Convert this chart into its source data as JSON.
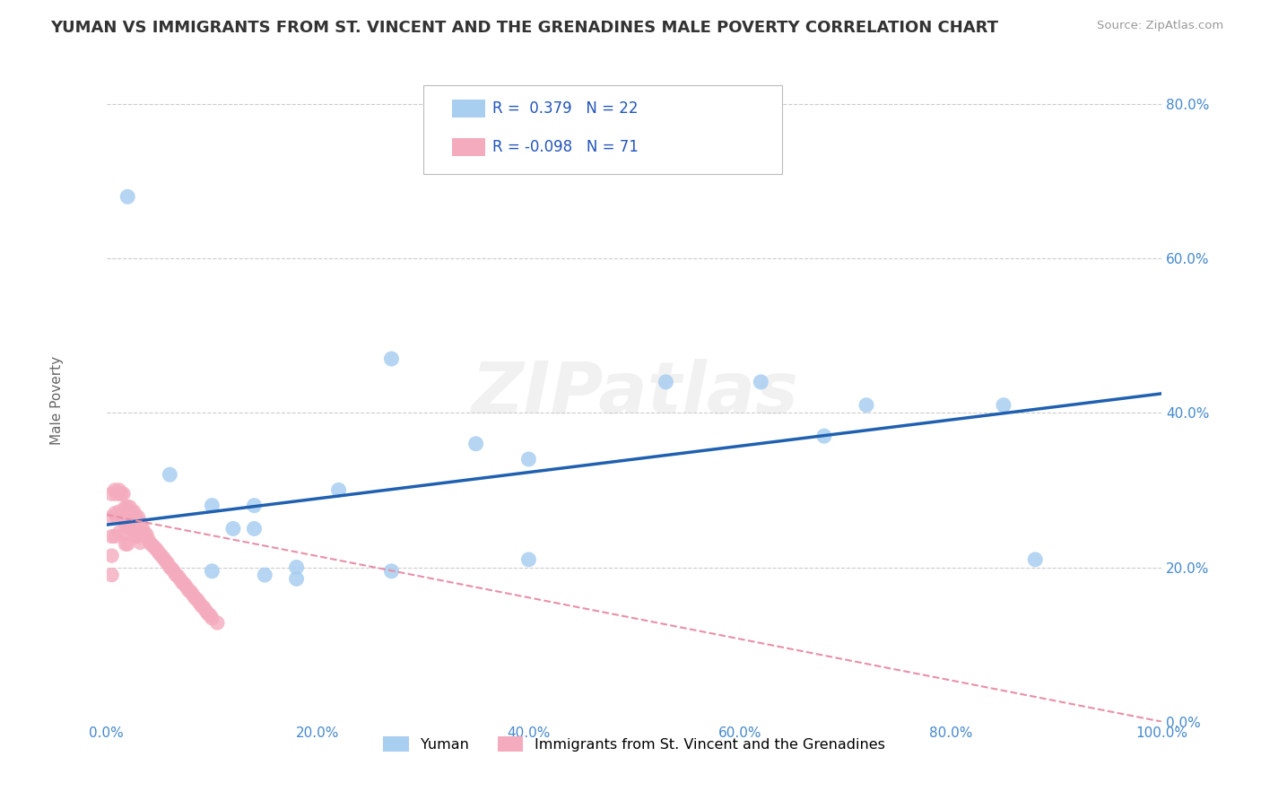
{
  "title": "YUMAN VS IMMIGRANTS FROM ST. VINCENT AND THE GRENADINES MALE POVERTY CORRELATION CHART",
  "source": "Source: ZipAtlas.com",
  "ylabel": "Male Poverty",
  "xlim": [
    0,
    1.0
  ],
  "ylim": [
    0,
    0.85
  ],
  "yticks": [
    0.0,
    0.2,
    0.4,
    0.6,
    0.8
  ],
  "ytick_labels": [
    "0.0%",
    "20.0%",
    "40.0%",
    "60.0%",
    "80.0%"
  ],
  "xticks": [
    0.0,
    0.2,
    0.4,
    0.6,
    0.8,
    1.0
  ],
  "xtick_labels": [
    "0.0%",
    "20.0%",
    "40.0%",
    "60.0%",
    "80.0%",
    "100.0%"
  ],
  "blue_R": 0.379,
  "blue_N": 22,
  "pink_R": -0.098,
  "pink_N": 71,
  "blue_color": "#A8CEF0",
  "pink_color": "#F4ABBE",
  "line_blue_color": "#2060B0",
  "line_pink_color": "#E890A8",
  "watermark": "ZIPatlas",
  "blue_scatter_x": [
    0.02,
    0.06,
    0.1,
    0.12,
    0.14,
    0.14,
    0.18,
    0.18,
    0.1,
    0.22,
    0.27,
    0.35,
    0.4,
    0.53,
    0.62,
    0.68,
    0.72,
    0.85,
    0.88,
    0.15,
    0.27,
    0.4
  ],
  "blue_scatter_y": [
    0.68,
    0.32,
    0.28,
    0.25,
    0.28,
    0.25,
    0.2,
    0.185,
    0.195,
    0.3,
    0.47,
    0.36,
    0.34,
    0.44,
    0.44,
    0.37,
    0.41,
    0.41,
    0.21,
    0.19,
    0.195,
    0.21
  ],
  "pink_scatter_x": [
    0.005,
    0.005,
    0.005,
    0.005,
    0.005,
    0.008,
    0.008,
    0.008,
    0.01,
    0.01,
    0.012,
    0.012,
    0.012,
    0.014,
    0.014,
    0.016,
    0.016,
    0.016,
    0.018,
    0.018,
    0.018,
    0.02,
    0.02,
    0.02,
    0.022,
    0.022,
    0.024,
    0.024,
    0.026,
    0.026,
    0.028,
    0.028,
    0.03,
    0.03,
    0.032,
    0.032,
    0.034,
    0.036,
    0.038,
    0.04,
    0.042,
    0.044,
    0.046,
    0.048,
    0.05,
    0.052,
    0.054,
    0.056,
    0.058,
    0.06,
    0.062,
    0.064,
    0.066,
    0.068,
    0.07,
    0.072,
    0.074,
    0.076,
    0.078,
    0.08,
    0.082,
    0.084,
    0.086,
    0.088,
    0.09,
    0.092,
    0.094,
    0.096,
    0.098,
    0.1,
    0.105
  ],
  "pink_scatter_y": [
    0.295,
    0.265,
    0.24,
    0.215,
    0.19,
    0.3,
    0.27,
    0.24,
    0.295,
    0.265,
    0.3,
    0.272,
    0.245,
    0.295,
    0.268,
    0.295,
    0.268,
    0.242,
    0.278,
    0.255,
    0.23,
    0.278,
    0.255,
    0.23,
    0.278,
    0.252,
    0.272,
    0.248,
    0.272,
    0.248,
    0.265,
    0.24,
    0.265,
    0.24,
    0.258,
    0.232,
    0.252,
    0.245,
    0.242,
    0.235,
    0.23,
    0.228,
    0.225,
    0.222,
    0.218,
    0.215,
    0.212,
    0.208,
    0.205,
    0.2,
    0.198,
    0.194,
    0.19,
    0.188,
    0.184,
    0.18,
    0.178,
    0.174,
    0.17,
    0.168,
    0.164,
    0.16,
    0.158,
    0.154,
    0.15,
    0.148,
    0.144,
    0.14,
    0.138,
    0.134,
    0.128
  ],
  "blue_line_x": [
    0.0,
    1.0
  ],
  "blue_line_y_start": 0.255,
  "blue_line_y_end": 0.425,
  "pink_line_x": [
    0.0,
    1.0
  ],
  "pink_line_y_start": 0.268,
  "pink_line_y_end": 0.0,
  "title_fontsize": 13,
  "axis_label_fontsize": 11,
  "tick_fontsize": 11,
  "background_color": "#FFFFFF",
  "grid_color": "#CCCCCC"
}
